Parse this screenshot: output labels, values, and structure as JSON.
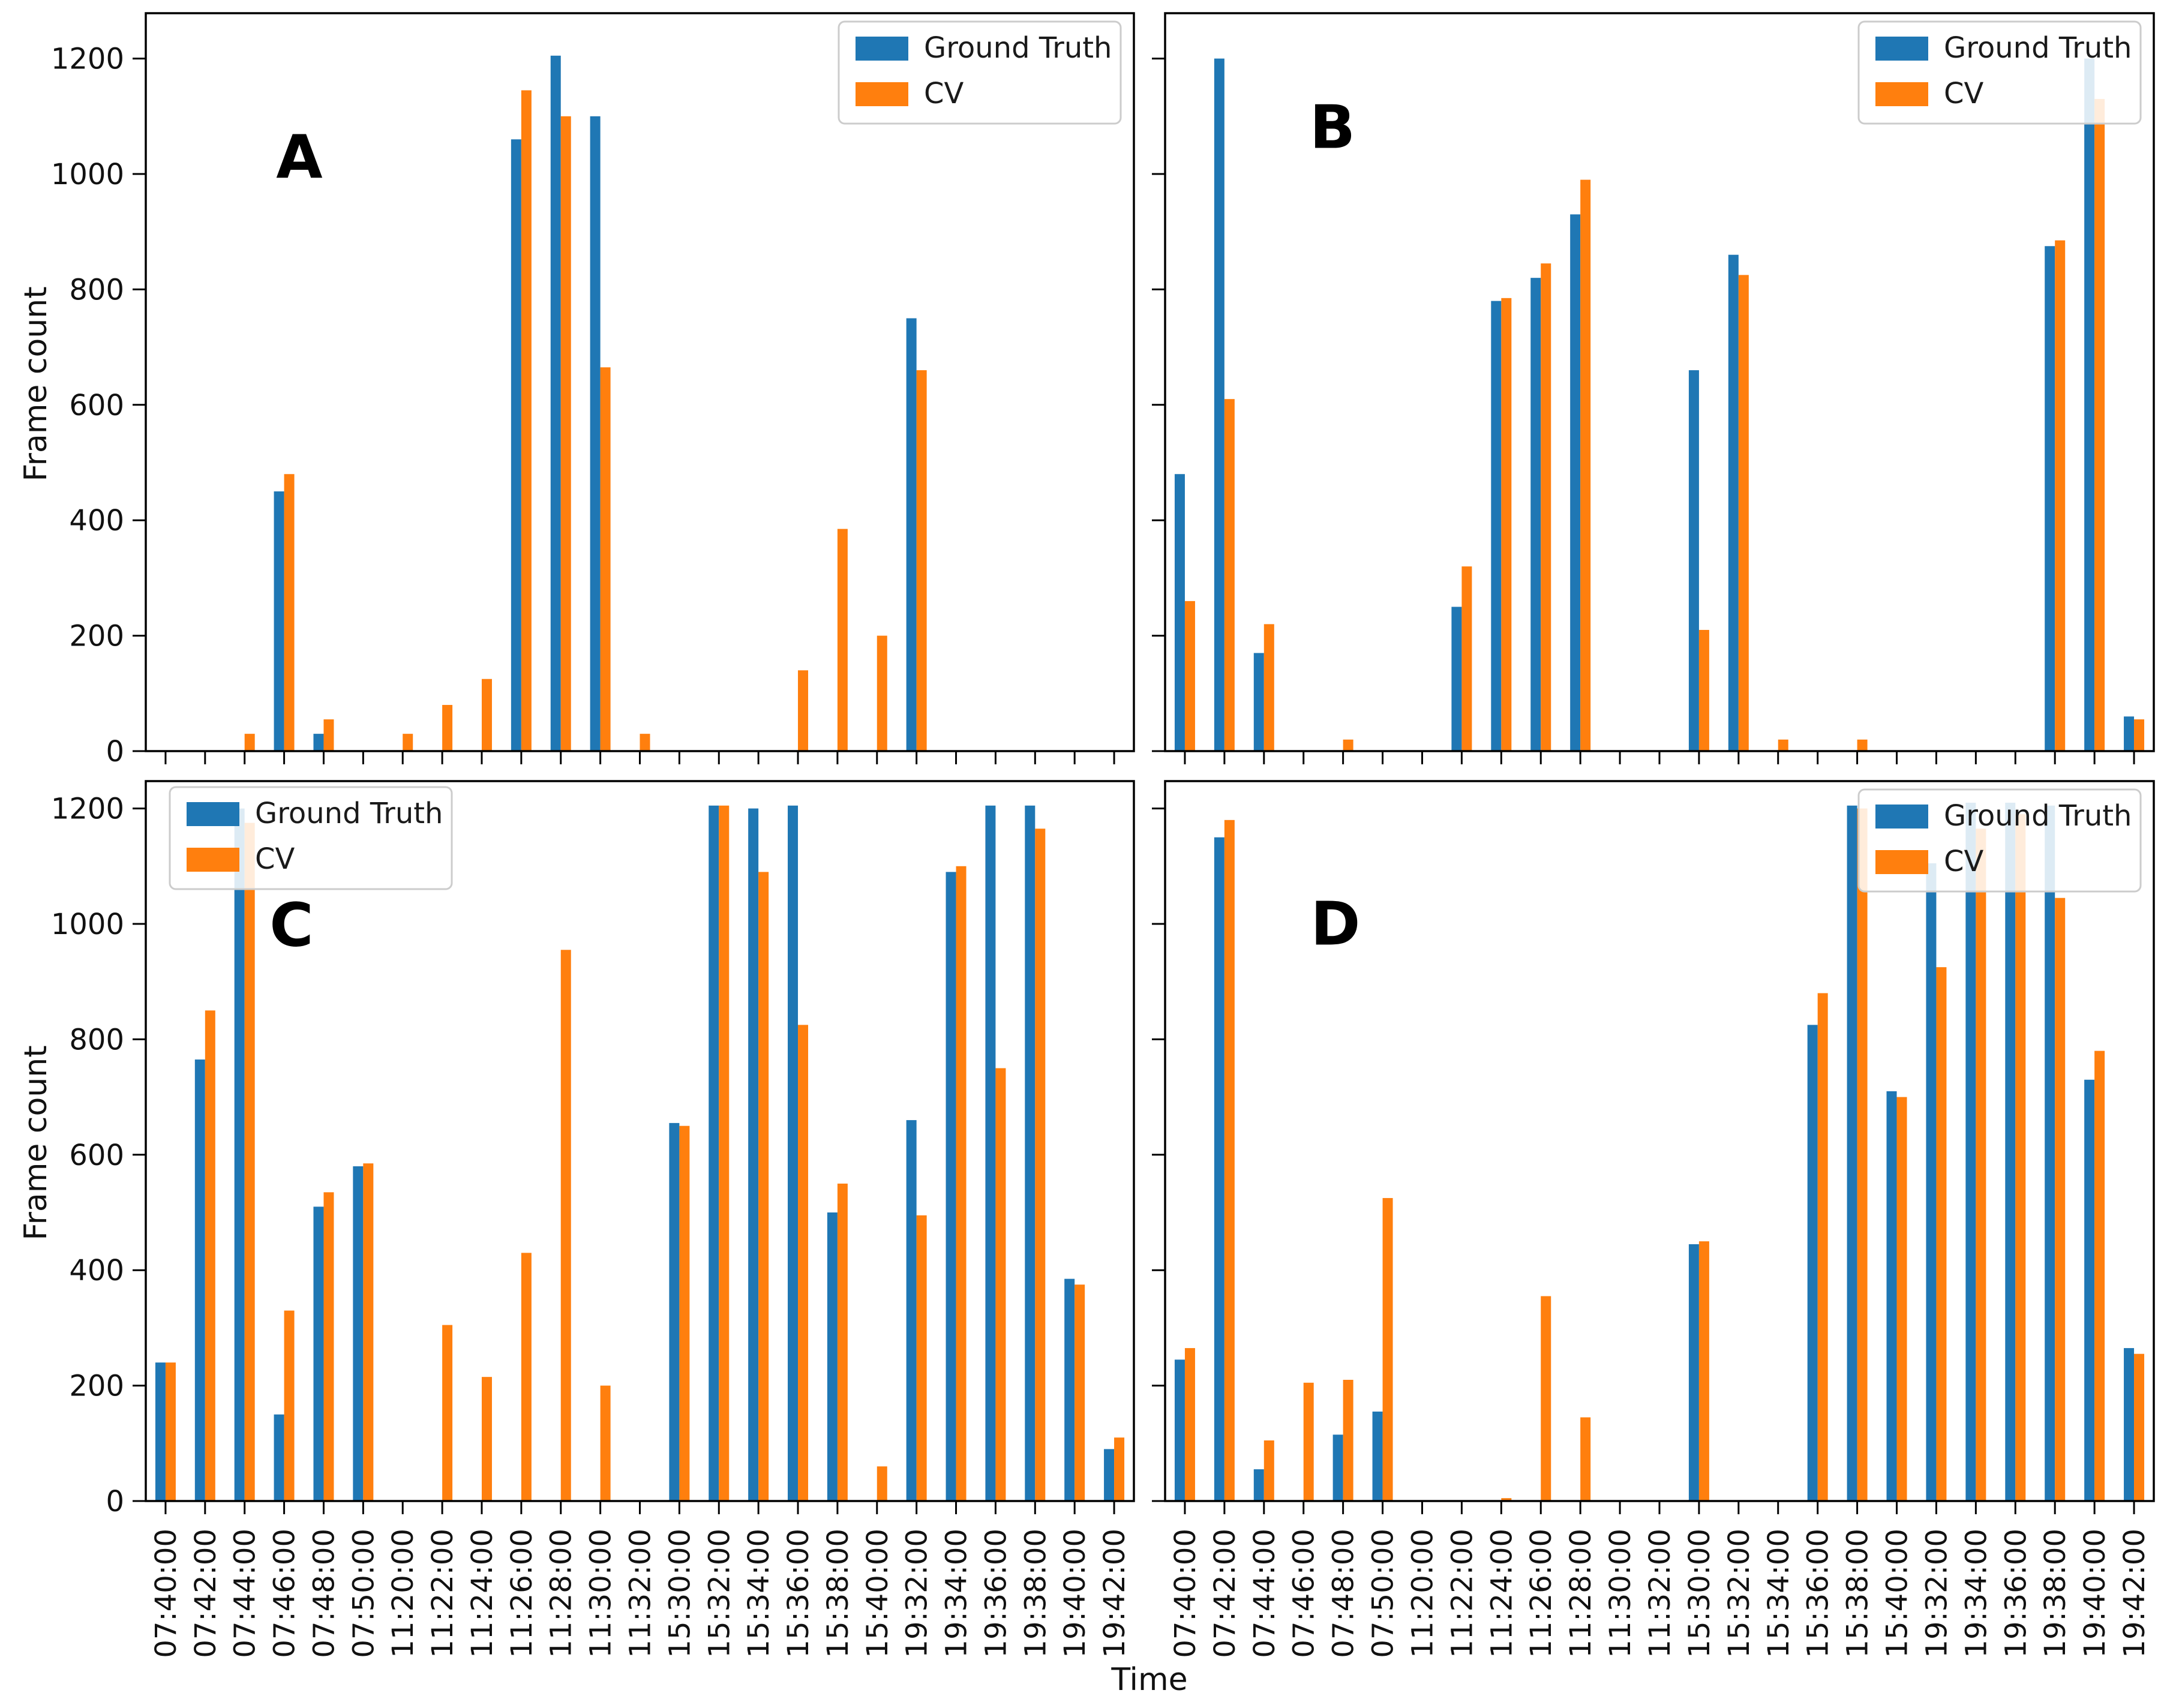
{
  "figure": {
    "background": "#ffffff"
  },
  "axis": {
    "ylabel": "Frame count",
    "xlabel": "Time"
  },
  "chart_data": {
    "type": "bar",
    "title": "",
    "grid": false,
    "legend": [
      "Ground Truth",
      "CV"
    ],
    "series_colors": {
      "Ground Truth": "#1f77b4",
      "CV": "#ff7f0e"
    },
    "frame_color": "#000000",
    "ylim": [
      0,
      1270
    ],
    "yticks": [
      0,
      200,
      400,
      600,
      800,
      1000,
      1200
    ],
    "categories": [
      "07:40:00",
      "07:42:00",
      "07:44:00",
      "07:46:00",
      "07:48:00",
      "07:50:00",
      "11:20:00",
      "11:22:00",
      "11:24:00",
      "11:26:00",
      "11:28:00",
      "11:30:00",
      "11:32:00",
      "15:30:00",
      "15:32:00",
      "15:34:00",
      "15:36:00",
      "15:38:00",
      "15:40:00",
      "19:32:00",
      "19:34:00",
      "19:36:00",
      "19:38:00",
      "19:40:00",
      "19:42:00"
    ],
    "panels": [
      {
        "label": "A",
        "legend_position": "upper-right",
        "series": [
          {
            "name": "Ground Truth",
            "values": [
              0,
              0,
              0,
              450,
              30,
              0,
              0,
              0,
              0,
              1060,
              1205,
              1100,
              0,
              0,
              0,
              0,
              0,
              0,
              0,
              750,
              0,
              0,
              0,
              0,
              0
            ]
          },
          {
            "name": "CV",
            "values": [
              0,
              0,
              30,
              480,
              55,
              0,
              30,
              80,
              125,
              1145,
              1100,
              665,
              30,
              0,
              0,
              0,
              140,
              385,
              200,
              660,
              0,
              0,
              0,
              0,
              0
            ]
          }
        ]
      },
      {
        "label": "B",
        "legend_position": "upper-right",
        "series": [
          {
            "name": "Ground Truth",
            "values": [
              480,
              1200,
              170,
              0,
              0,
              0,
              0,
              250,
              780,
              820,
              930,
              0,
              0,
              660,
              860,
              0,
              0,
              0,
              0,
              0,
              0,
              0,
              875,
              1200,
              60
            ]
          },
          {
            "name": "CV",
            "values": [
              260,
              610,
              220,
              0,
              20,
              0,
              0,
              320,
              785,
              845,
              990,
              0,
              0,
              210,
              825,
              20,
              0,
              20,
              0,
              0,
              0,
              0,
              885,
              1130,
              55
            ]
          }
        ]
      },
      {
        "label": "C",
        "legend_position": "upper-left",
        "series": [
          {
            "name": "Ground Truth",
            "values": [
              240,
              765,
              1200,
              150,
              510,
              580,
              0,
              0,
              0,
              0,
              0,
              0,
              0,
              655,
              1205,
              1200,
              1205,
              500,
              0,
              660,
              1090,
              1205,
              1205,
              385,
              90
            ]
          },
          {
            "name": "CV",
            "values": [
              240,
              850,
              1175,
              330,
              535,
              585,
              0,
              305,
              215,
              430,
              955,
              200,
              0,
              650,
              1205,
              1090,
              825,
              550,
              60,
              495,
              1100,
              750,
              1165,
              375,
              110
            ]
          }
        ]
      },
      {
        "label": "D",
        "legend_position": "upper-right",
        "series": [
          {
            "name": "Ground Truth",
            "values": [
              245,
              1150,
              55,
              0,
              115,
              155,
              0,
              0,
              0,
              0,
              0,
              0,
              0,
              445,
              0,
              0,
              825,
              1205,
              710,
              1105,
              1210,
              1210,
              1205,
              730,
              265
            ]
          },
          {
            "name": "CV",
            "values": [
              265,
              1180,
              105,
              205,
              210,
              525,
              0,
              0,
              5,
              355,
              145,
              0,
              0,
              450,
              0,
              0,
              880,
              1200,
              700,
              925,
              1165,
              1190,
              1045,
              780,
              255
            ]
          }
        ]
      }
    ]
  }
}
